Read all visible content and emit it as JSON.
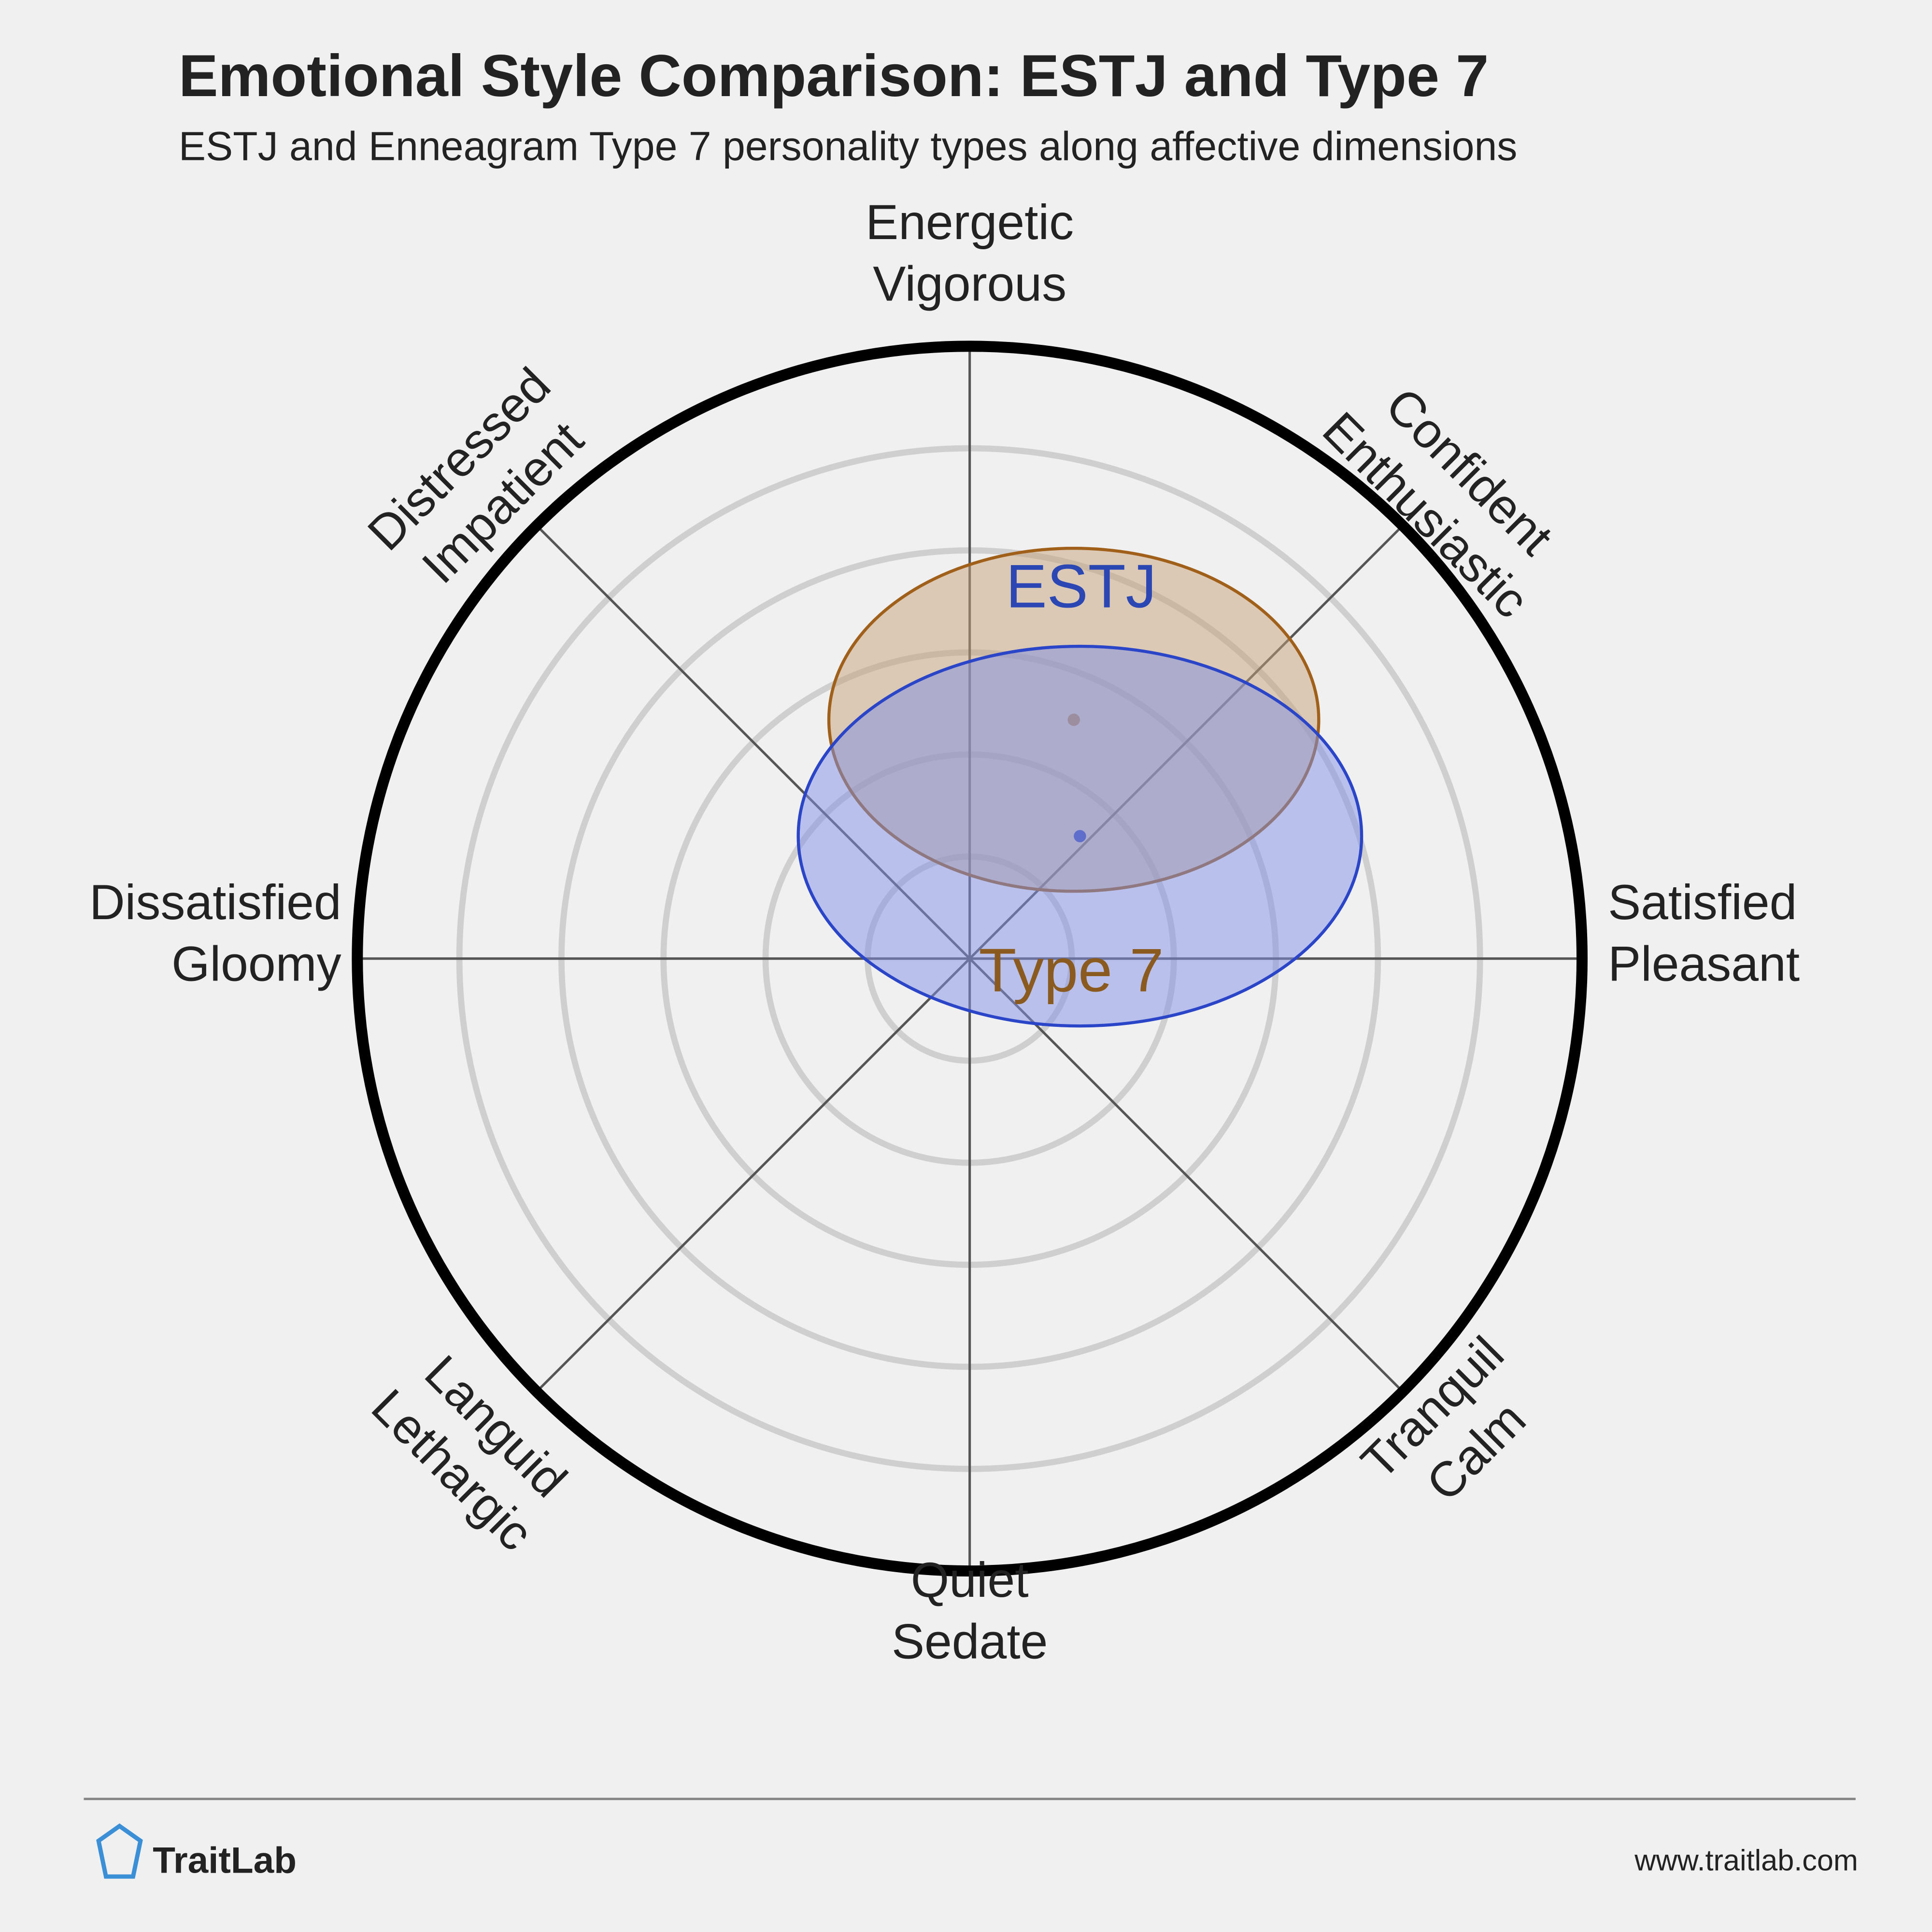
{
  "chart_data": {
    "type": "circumplex",
    "title": "Emotional Style Comparison: ESTJ and Type 7",
    "subtitle": "ESTJ and Enneagram Type 7 personality types along affective dimensions",
    "axis_labels": [
      [
        "Energetic",
        "Vigorous"
      ],
      [
        "Confident",
        "Enthusiastic"
      ],
      [
        "Satisfied",
        "Pleasant"
      ],
      [
        "Tranquil",
        "Calm"
      ],
      [
        "Quiet",
        "Sedate"
      ],
      [
        "Languid",
        "Lethargic"
      ],
      [
        "Dissatisfied",
        "Gloomy"
      ],
      [
        "Distressed",
        "Impatient"
      ]
    ],
    "xlim": [
      -1,
      1
    ],
    "ylim": [
      -1,
      1
    ],
    "grid": true,
    "series": [
      {
        "name": "ESTJ",
        "color": "#a0601a",
        "fill": "#c8a27a",
        "label_color": "#2b47b3",
        "x": 0.17,
        "y": 0.39,
        "rx": 0.4,
        "ry": 0.28
      },
      {
        "name": "Type 7",
        "color": "#2a45c8",
        "fill": "#7f8fe6",
        "label_color": "#8b5a1e",
        "x": 0.18,
        "y": 0.2,
        "rx": 0.46,
        "ry": 0.31
      }
    ]
  },
  "footer": {
    "brand": "TraitLab",
    "url": "www.traitlab.com"
  }
}
